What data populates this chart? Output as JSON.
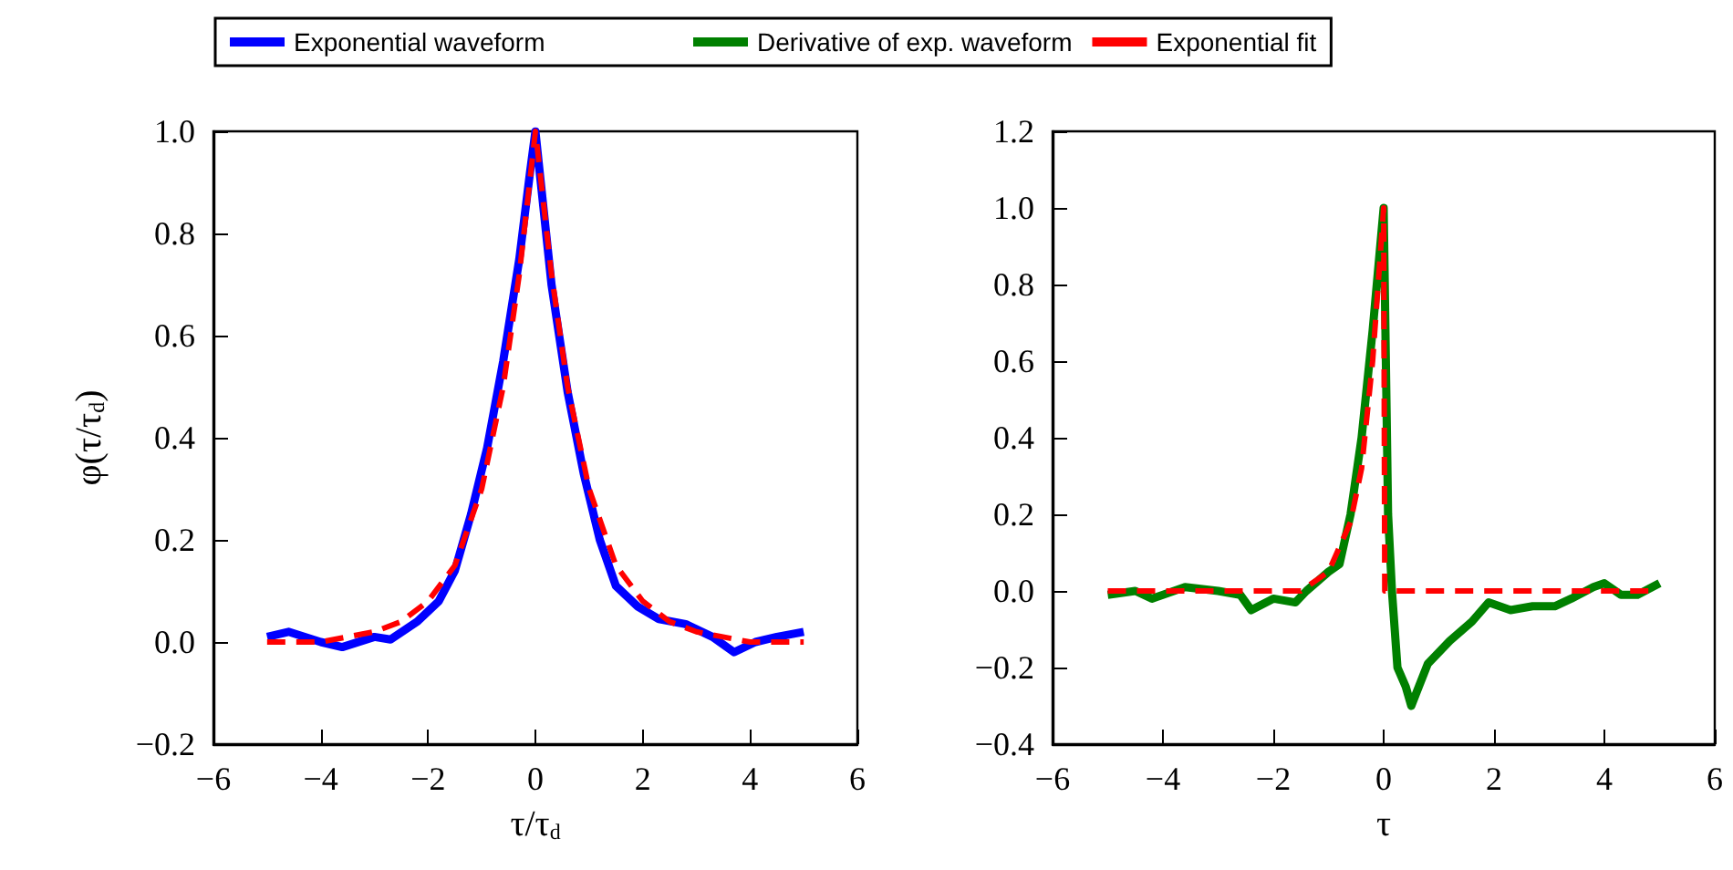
{
  "chart_data": [
    {
      "type": "line",
      "xlabel": "τ/τ$_{d}$",
      "ylabel": "φ(τ/τ$_{d}$)",
      "legend": "top",
      "xlim": [
        -6,
        6
      ],
      "ylim": [
        -0.2,
        1.0
      ],
      "xticks": [
        {
          "value": -6,
          "label": "−6"
        },
        {
          "value": -4,
          "label": "−4"
        },
        {
          "value": -2,
          "label": "−2"
        },
        0,
        2,
        4,
        6
      ],
      "yticks": [
        {
          "value": -0.2,
          "label": "−0.2"
        },
        {
          "value": 0,
          "label": "0.0"
        },
        {
          "value": 0.2,
          "label": "0.2"
        },
        {
          "value": 0.4,
          "label": "0.4"
        },
        {
          "value": 0.6,
          "label": "0.6"
        },
        {
          "value": 0.8,
          "label": "0.8"
        },
        {
          "value": 1,
          "label": "1.0"
        }
      ],
      "series": [
        {
          "name": "Exponential waveform",
          "color": "#0000ff",
          "line_style": "solid",
          "x": [
            -5,
            -4.6,
            -4,
            -3.6,
            -3,
            -2.7,
            -2.2,
            -1.8,
            -1.5,
            -1.2,
            -0.9,
            -0.6,
            -0.3,
            -0.1,
            0,
            0.1,
            0.3,
            0.6,
            0.9,
            1.2,
            1.5,
            1.9,
            2.3,
            2.8,
            3.3,
            3.7,
            4.1,
            4.5,
            5
          ],
          "values": [
            0.01,
            0.02,
            0,
            -0.01,
            0.01,
            0.005,
            0.04,
            0.08,
            0.14,
            0.25,
            0.38,
            0.55,
            0.75,
            0.92,
            1.0,
            0.9,
            0.7,
            0.49,
            0.33,
            0.2,
            0.11,
            0.07,
            0.045,
            0.035,
            0.01,
            -0.02,
            0.0,
            0.01,
            0.02
          ]
        },
        {
          "name": "Exponential fit",
          "color": "#ff0000",
          "line_style": "dashed",
          "x": [
            -5,
            -4,
            -3,
            -2.5,
            -2,
            -1.5,
            -1,
            -0.6,
            -0.3,
            0,
            0.3,
            0.6,
            1,
            1.5,
            2,
            2.5,
            3,
            4,
            5
          ],
          "values": [
            0,
            0,
            0.02,
            0.04,
            0.08,
            0.15,
            0.3,
            0.5,
            0.72,
            1.0,
            0.72,
            0.5,
            0.3,
            0.15,
            0.08,
            0.04,
            0.02,
            0,
            0
          ]
        }
      ]
    },
    {
      "type": "line",
      "xlabel": "τ",
      "legend": "top",
      "xlim": [
        -6,
        6
      ],
      "ylim": [
        -0.4,
        1.2
      ],
      "xticks": [
        {
          "value": -6,
          "label": "−6"
        },
        {
          "value": -4,
          "label": "−4"
        },
        {
          "value": -2,
          "label": "−2"
        },
        0,
        2,
        4,
        6
      ],
      "yticks": [
        {
          "value": -0.4,
          "label": "−0.4"
        },
        {
          "value": -0.2,
          "label": "−0.2"
        },
        {
          "value": 0,
          "label": "0.0"
        },
        {
          "value": 0.2,
          "label": "0.2"
        },
        {
          "value": 0.4,
          "label": "0.4"
        },
        {
          "value": 0.6,
          "label": "0.6"
        },
        {
          "value": 0.8,
          "label": "0.8"
        },
        {
          "value": 1,
          "label": "1.0"
        },
        {
          "value": 1.2,
          "label": "1.2"
        }
      ],
      "series": [
        {
          "name": "Derivative of exp. waveform",
          "color": "#008000",
          "line_style": "solid",
          "x": [
            -5,
            -4.5,
            -4.2,
            -3.6,
            -3,
            -2.6,
            -2.4,
            -2,
            -1.6,
            -1.4,
            -1,
            -0.8,
            -0.6,
            -0.4,
            -0.2,
            0,
            0.08,
            0.15,
            0.25,
            0.4,
            0.5,
            0.8,
            1.2,
            1.6,
            1.9,
            2.3,
            2.7,
            3.1,
            3.4,
            3.8,
            4,
            4.3,
            4.6,
            5
          ],
          "values": [
            -0.01,
            0,
            -0.02,
            0.01,
            0,
            -0.01,
            -0.05,
            -0.02,
            -0.03,
            0,
            0.05,
            0.07,
            0.2,
            0.4,
            0.68,
            1.0,
            0.2,
            0,
            -0.2,
            -0.25,
            -0.3,
            -0.19,
            -0.13,
            -0.08,
            -0.03,
            -0.05,
            -0.04,
            -0.04,
            -0.02,
            0.01,
            0.02,
            -0.01,
            -0.01,
            0.02
          ]
        },
        {
          "color": "#ff0000",
          "line_style": "dashed",
          "x": [
            -5,
            -3,
            -1.5,
            -1.4,
            -1,
            -0.6,
            -0.4,
            -0.2,
            0,
            0.02,
            1,
            3,
            4.8
          ],
          "values": [
            0,
            0,
            0,
            0.01,
            0.05,
            0.18,
            0.32,
            0.6,
            1.0,
            0,
            0,
            0,
            0
          ]
        }
      ]
    }
  ]
}
